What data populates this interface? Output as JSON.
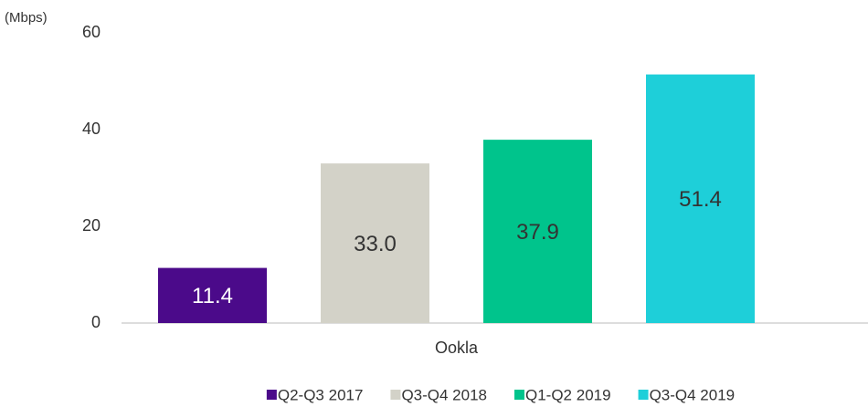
{
  "chart_data": {
    "type": "bar",
    "y_label": "(Mbps)",
    "categories": [
      "Ookla"
    ],
    "series": [
      {
        "name": "Q2-Q3 2017",
        "color": "#4b0a8a",
        "values": [
          11.4
        ]
      },
      {
        "name": "Q3-Q4 2018",
        "color": "#d3d2c8",
        "values": [
          33
        ],
        "value_labels": [
          "33.0"
        ]
      },
      {
        "name": "Q1-Q2 2019",
        "color": "#00c48c",
        "values": [
          37.9
        ]
      },
      {
        "name": "Q3-Q4 2019",
        "color": "#1ecfd9",
        "values": [
          51.4
        ]
      }
    ],
    "ylim": [
      0,
      60
    ],
    "yticks": [
      0,
      20,
      40,
      60
    ],
    "grid": false,
    "legend": "bottom"
  }
}
